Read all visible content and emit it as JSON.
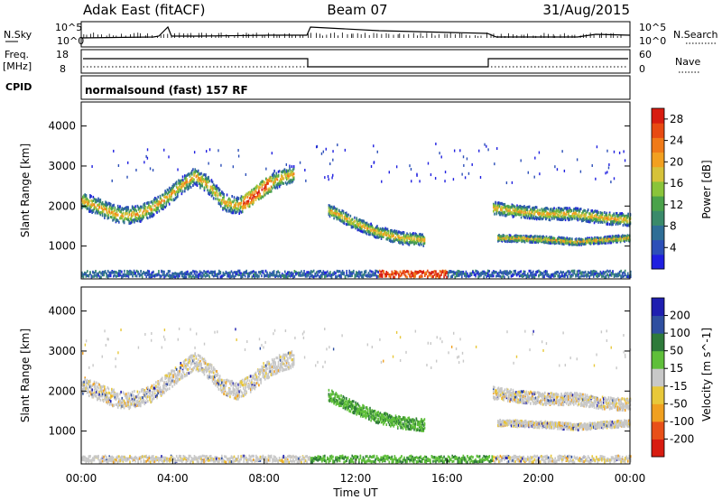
{
  "header": {
    "station": "Adak East (fitACF)",
    "beam": "Beam 07",
    "date": "31/Aug/2015"
  },
  "summary": {
    "nsky_label": "N.Sky",
    "nsearch_label": "N.Search",
    "nsky_ticks": [
      "10^5",
      "10^0"
    ],
    "nsearch_ticks": [
      "10^5",
      "10^0"
    ],
    "freq_label_line1": "Freq.",
    "freq_label_line2": "[MHz]",
    "freq_ticks": [
      "18",
      "8"
    ],
    "nave_label": "Nave",
    "nave_ticks": [
      "60",
      "0"
    ],
    "cpid_label": "CPID",
    "cpid_text": "normalsound (fast) 157 RF"
  },
  "xaxis": {
    "label": "Time UT",
    "ticks": [
      "00:00",
      "04:00",
      "08:00",
      "12:00",
      "16:00",
      "20:00",
      "00:00"
    ]
  },
  "chart_data": [
    {
      "type": "heatmap",
      "title": "Power",
      "ylabel": "Slant Range [km]",
      "xlabel": "",
      "x_range_hours": [
        0,
        24
      ],
      "ylim_km": [
        180,
        4600
      ],
      "yticks": [
        "1000",
        "2000",
        "3000",
        "4000"
      ],
      "colorbar": {
        "label": "Power [dB]",
        "ticks": [
          "4",
          "8",
          "12",
          "16",
          "20",
          "24",
          "28"
        ],
        "range": [
          0,
          30
        ],
        "colors": [
          "#1f1fe0",
          "#2c4fb8",
          "#2f6e96",
          "#3a8a6a",
          "#4aa24a",
          "#8ac43a",
          "#d6c23a",
          "#f2a020",
          "#f07a18",
          "#e84a12",
          "#d81c10"
        ]
      },
      "features": [
        {
          "name": "morning band",
          "t_start": 0.0,
          "t_end": 9.3,
          "ranges_km": [
            2150,
            2000,
            1850,
            1750,
            1800,
            1950,
            2200,
            2500,
            2750,
            2500,
            2100,
            2000,
            2200,
            2500,
            2700,
            2800
          ]
        },
        {
          "name": "mid-day near-range echoes",
          "t_start": 10.8,
          "t_end": 15.0,
          "ranges_km": [
            1900,
            1600,
            1350,
            1200,
            1150
          ]
        },
        {
          "name": "evening band",
          "t_start": 18.0,
          "t_end": 24.0,
          "ranges_km": [
            1950,
            1850,
            1800,
            1800,
            1700,
            1650
          ]
        },
        {
          "name": "ground scatter near 1200 km",
          "t_start": 18.2,
          "t_end": 24.0,
          "ranges_km": [
            1200,
            1180,
            1150,
            1100,
            1150,
            1200
          ]
        }
      ]
    },
    {
      "type": "heatmap",
      "title": "Velocity",
      "ylabel": "Slant Range [km]",
      "xlabel": "Time UT",
      "x_range_hours": [
        0,
        24
      ],
      "ylim_km": [
        180,
        4600
      ],
      "yticks": [
        "1000",
        "2000",
        "3000",
        "4000"
      ],
      "colorbar": {
        "label": "Velocity [m s^-1]",
        "ticks": [
          "200",
          "100",
          "50",
          "15",
          "-15",
          "-50",
          "-100",
          "-200"
        ],
        "range": [
          -250,
          250
        ],
        "colors": [
          "#1f1fb0",
          "#2f4fa0",
          "#2e7a3a",
          "#5fbf3a",
          "#c8c8c8",
          "#e8c83a",
          "#f0a020",
          "#e85018",
          "#d81c10"
        ]
      }
    }
  ]
}
